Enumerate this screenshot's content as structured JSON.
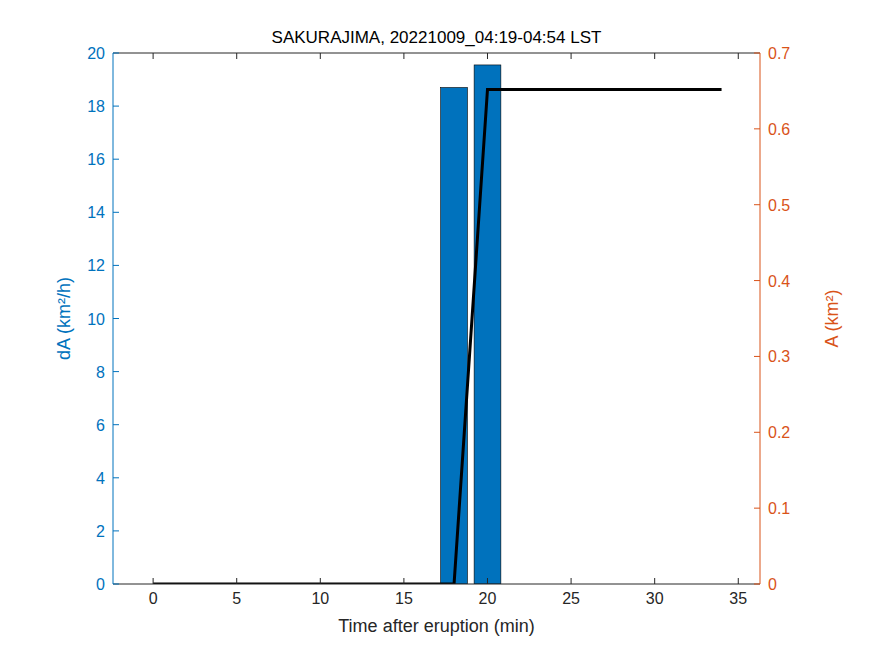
{
  "chart_data": {
    "type": "bar",
    "title": "SAKURAJIMA, 20221009_04:19-04:54 LST",
    "x_label": "Time after eruption (min)",
    "y_label": "dA (km²/h)",
    "y2_label": "A (km²)",
    "xlim": [
      -2.4,
      36.3
    ],
    "xticks": [
      0,
      5,
      10,
      15,
      20,
      25,
      30,
      35
    ],
    "ylim": [
      0,
      20
    ],
    "yticks": [
      0,
      2,
      4,
      6,
      8,
      10,
      12,
      14,
      16,
      18,
      20
    ],
    "y2lim": [
      0,
      0.7
    ],
    "y2ticks": [
      0,
      0.1,
      0.2,
      0.3,
      0.4,
      0.5,
      0.6,
      0.7
    ],
    "grid": false,
    "series": [
      {
        "name": "dA",
        "type": "bar",
        "color": "#0072bd",
        "x": [
          18,
          20
        ],
        "values": [
          18.7,
          19.55
        ]
      },
      {
        "name": "A",
        "type": "line",
        "axis": "y2",
        "color": "#000000",
        "x": [
          0,
          2,
          4,
          6,
          8,
          10,
          12,
          14,
          16,
          18,
          20,
          22,
          24,
          26,
          28,
          30,
          32,
          34
        ],
        "values": [
          0,
          0,
          0,
          0,
          0,
          0,
          0,
          0,
          0,
          0,
          0.652,
          0.652,
          0.652,
          0.652,
          0.652,
          0.652,
          0.652,
          0.652
        ]
      }
    ],
    "y_color": "#0072bd",
    "y2_color": "#d95319"
  }
}
